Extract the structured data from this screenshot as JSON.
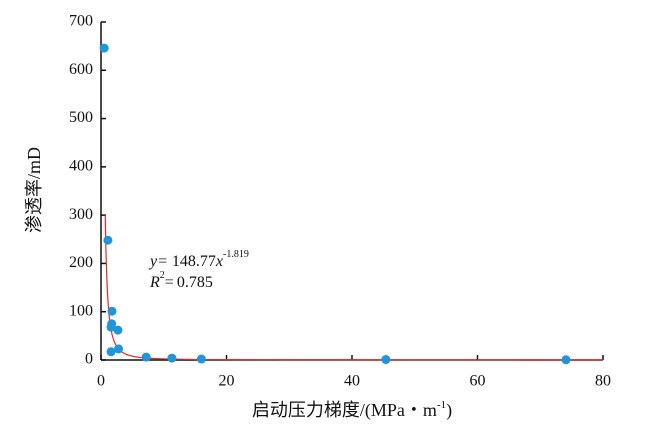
{
  "chart_data": {
    "type": "scatter",
    "ylabel": "渗透率/mD",
    "xlabel": {
      "text": "启动压力梯度/(MPa・m",
      "sup": "-1",
      "end": ")"
    },
    "x": [
      0.5,
      1.1,
      1.75,
      1.7,
      1.6,
      2.7,
      1.6,
      2.8,
      7.2,
      11.3,
      16,
      45.4,
      74.1
    ],
    "series": [
      {
        "name": "渗透率",
        "color": "#1e96dc",
        "values": [
          646,
          248,
          101,
          75,
          68,
          62,
          17,
          23,
          6,
          4,
          2,
          1,
          0.5
        ]
      }
    ],
    "fit": {
      "color": "#e8262a",
      "lhs": "y=",
      "coefficient": 148.77,
      "variable": "x",
      "exponent": -1.819,
      "domain": [
        0.68,
        80
      ]
    },
    "r_squared": {
      "lhs": "R",
      "power": "2",
      "eq": "=",
      "value": 0.785
    },
    "xlim": [
      0,
      80
    ],
    "xticks": [
      0,
      20,
      40,
      60,
      80
    ],
    "ylim": [
      0,
      700
    ],
    "yticks": [
      0,
      100,
      200,
      300,
      400,
      500,
      600,
      700
    ],
    "grid": false
  }
}
